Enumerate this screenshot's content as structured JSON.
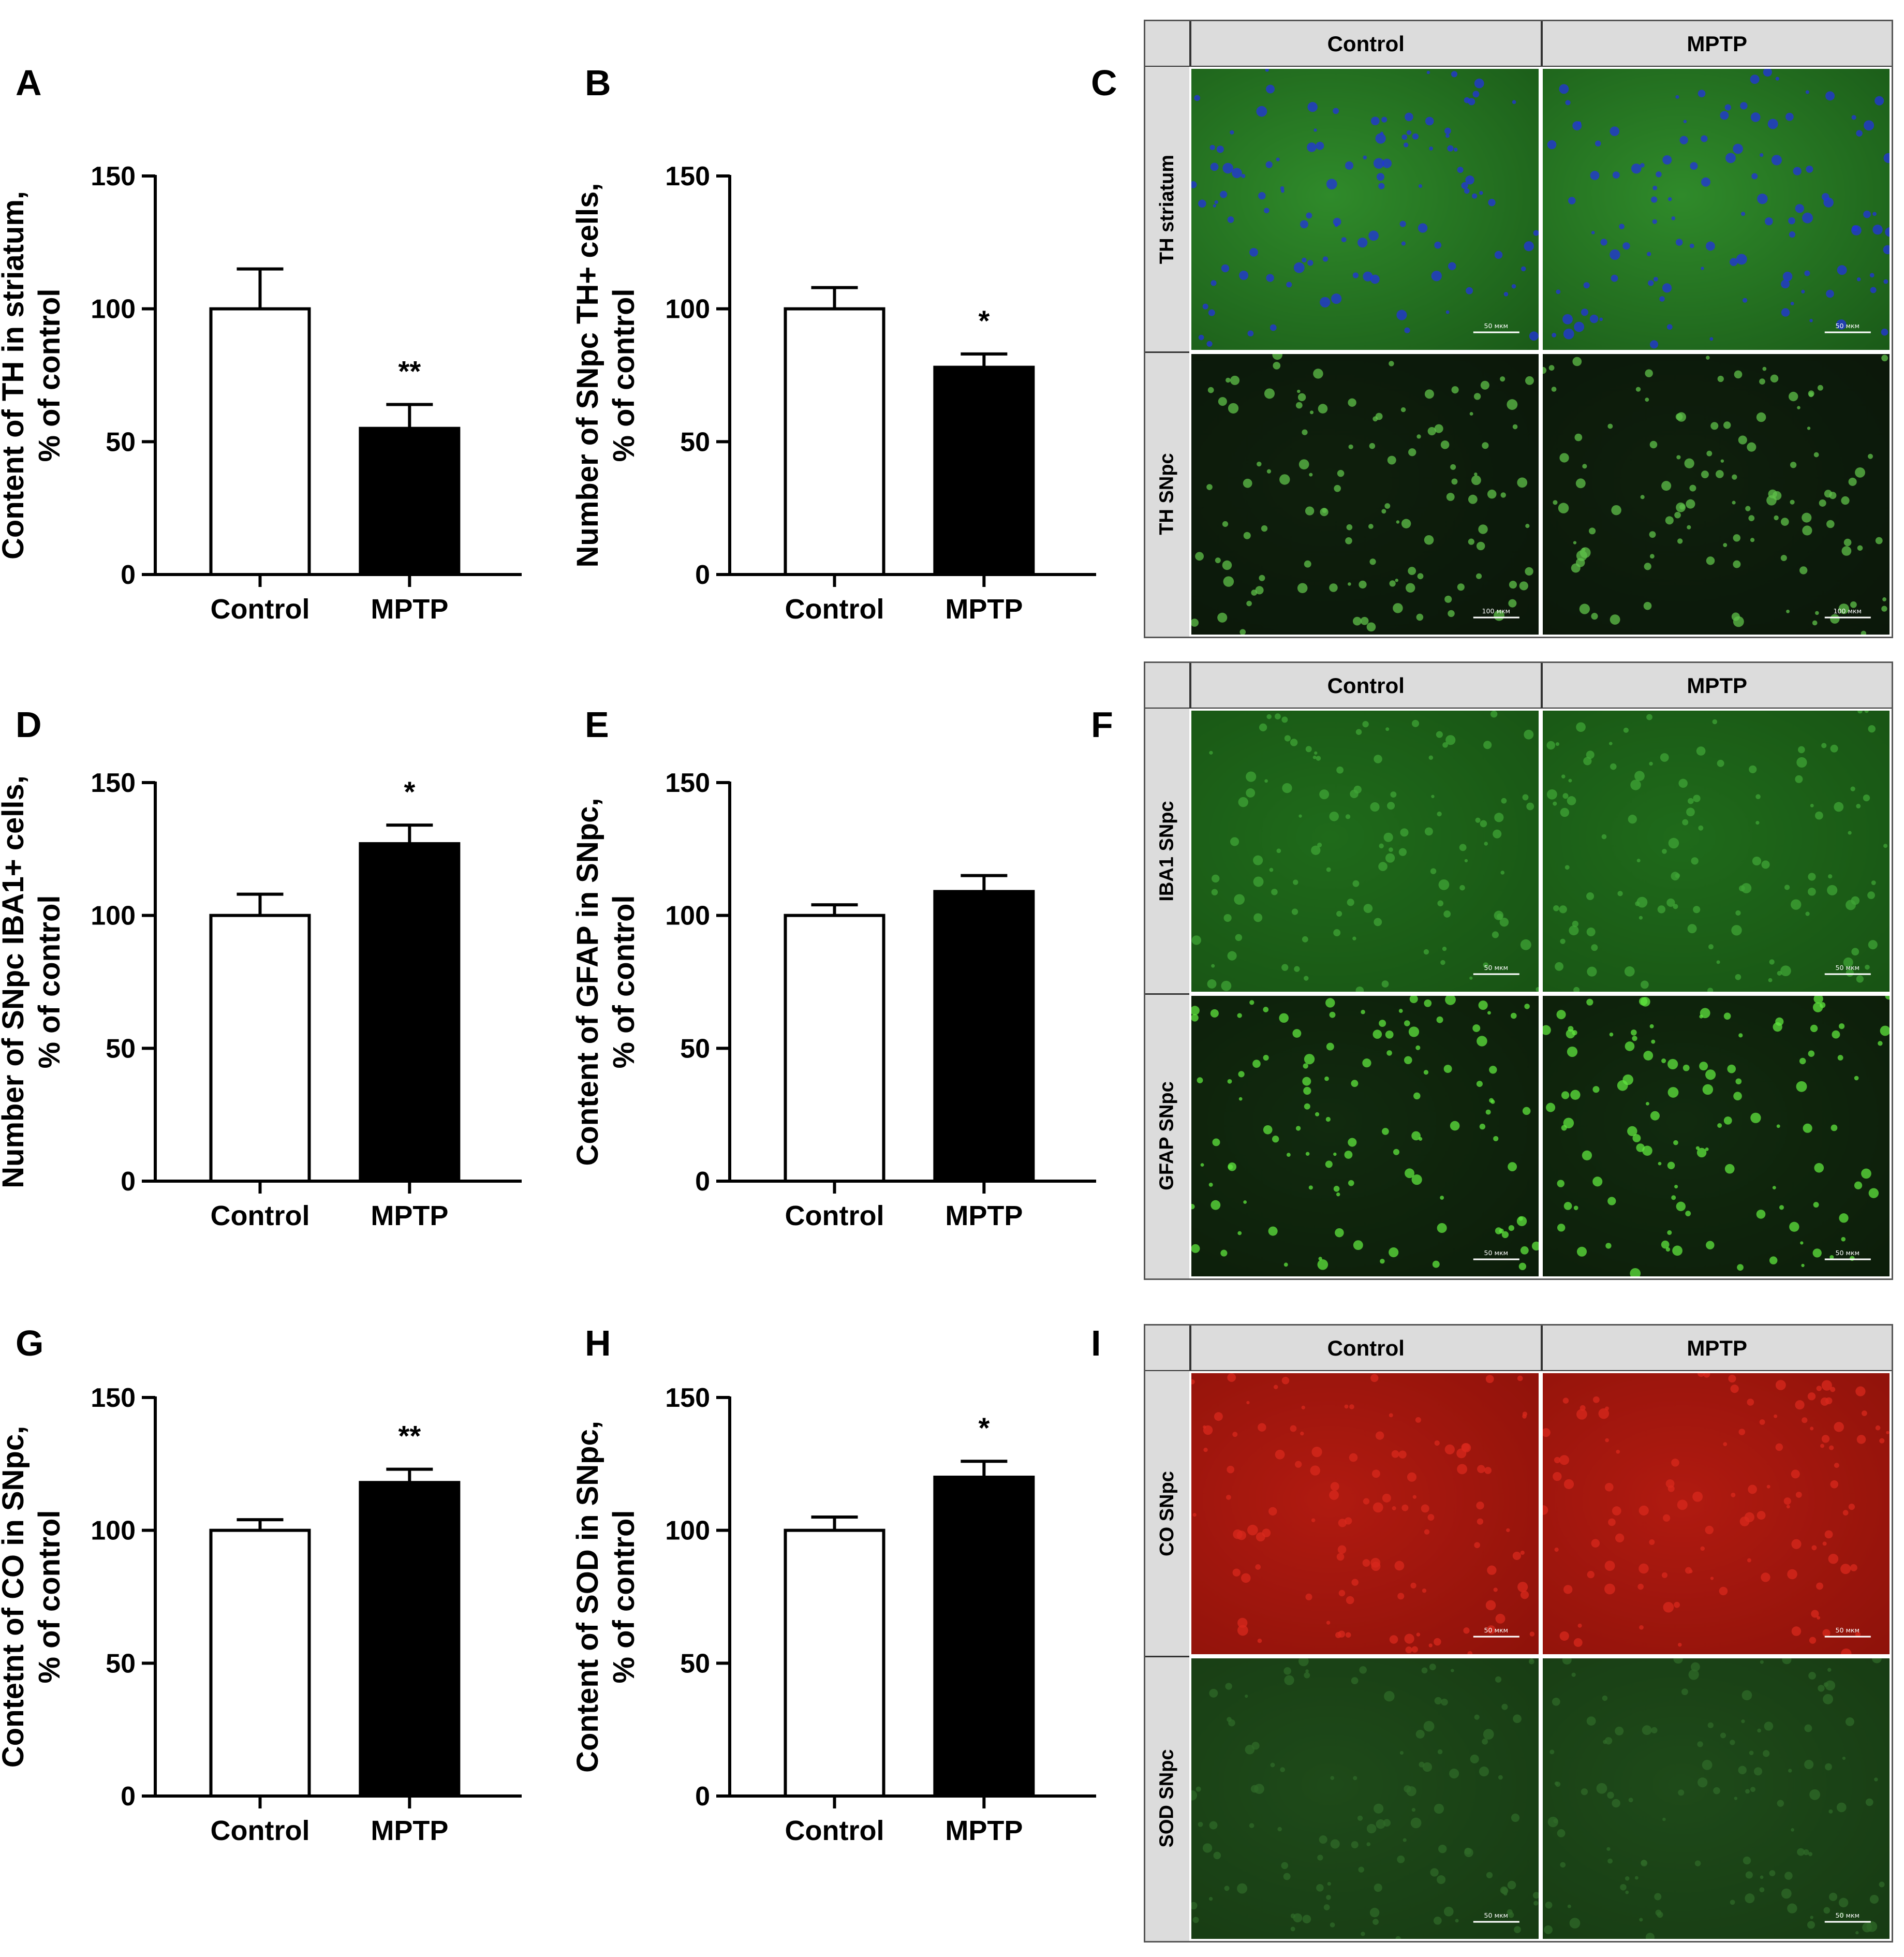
{
  "panels": {
    "A": "A",
    "B": "B",
    "C": "C",
    "D": "D",
    "E": "E",
    "F": "F",
    "G": "G",
    "H": "H",
    "I": "I"
  },
  "chart_data": [
    {
      "panel": "A",
      "type": "bar",
      "categories": [
        "Control",
        "MPTP"
      ],
      "values": [
        100,
        55
      ],
      "errors": [
        15,
        9
      ],
      "significance": [
        "",
        "**"
      ],
      "ylabel_line1": "Content of TH in striatum,",
      "ylabel_line2": "% of control",
      "ylim": [
        0,
        150
      ],
      "yticks": [
        0,
        50,
        100,
        150
      ],
      "bar_colors": [
        "#ffffff",
        "#000000"
      ],
      "grid": false
    },
    {
      "panel": "B",
      "type": "bar",
      "categories": [
        "Control",
        "MPTP"
      ],
      "values": [
        100,
        78
      ],
      "errors": [
        8,
        5
      ],
      "significance": [
        "",
        "*"
      ],
      "ylabel_line1": "Number of SNpc TH+ cells,",
      "ylabel_line2": "% of control",
      "ylim": [
        0,
        150
      ],
      "yticks": [
        0,
        50,
        100,
        150
      ],
      "bar_colors": [
        "#ffffff",
        "#000000"
      ],
      "grid": false
    },
    {
      "panel": "D",
      "type": "bar",
      "categories": [
        "Control",
        "MPTP"
      ],
      "values": [
        100,
        127
      ],
      "errors": [
        8,
        7
      ],
      "significance": [
        "",
        "*"
      ],
      "ylabel_line1": "Number of SNpc IBA1+ cells,",
      "ylabel_line2": "% of control",
      "ylim": [
        0,
        150
      ],
      "yticks": [
        0,
        50,
        100,
        150
      ],
      "bar_colors": [
        "#ffffff",
        "#000000"
      ],
      "grid": false
    },
    {
      "panel": "E",
      "type": "bar",
      "categories": [
        "Control",
        "MPTP"
      ],
      "values": [
        100,
        109
      ],
      "errors": [
        4,
        6
      ],
      "significance": [
        "",
        ""
      ],
      "ylabel_line1": "Content of GFAP in SNpc,",
      "ylabel_line2": "% of control",
      "ylim": [
        0,
        150
      ],
      "yticks": [
        0,
        50,
        100,
        150
      ],
      "bar_colors": [
        "#ffffff",
        "#000000"
      ],
      "grid": false
    },
    {
      "panel": "G",
      "type": "bar",
      "categories": [
        "Control",
        "MPTP"
      ],
      "values": [
        100,
        118
      ],
      "errors": [
        4,
        5
      ],
      "significance": [
        "",
        "**"
      ],
      "ylabel_line1": "Contetnt of CO in SNpc,",
      "ylabel_line2": "% of control",
      "ylim": [
        0,
        150
      ],
      "yticks": [
        0,
        50,
        100,
        150
      ],
      "bar_colors": [
        "#ffffff",
        "#000000"
      ],
      "grid": false
    },
    {
      "panel": "H",
      "type": "bar",
      "categories": [
        "Control",
        "MPTP"
      ],
      "values": [
        100,
        120
      ],
      "errors": [
        5,
        6
      ],
      "significance": [
        "",
        "*"
      ],
      "ylabel_line1": "Content of SOD in SNpc,",
      "ylabel_line2": "% of control",
      "ylim": [
        0,
        150
      ],
      "yticks": [
        0,
        50,
        100,
        150
      ],
      "bar_colors": [
        "#ffffff",
        "#000000"
      ],
      "grid": false
    }
  ],
  "micrographs": [
    {
      "panel": "C",
      "col_headers": [
        "Control",
        "MPTP"
      ],
      "rows": [
        {
          "label": "TH striatum",
          "tint": "#2f8a2a",
          "base": "#1a5a18",
          "dots": "#2233dd",
          "scale": "50 мкм"
        },
        {
          "label": "TH SNpc",
          "tint": "#0e1f0c",
          "base": "#0b170a",
          "dots": "#5fc24a",
          "scale": "100 мкм"
        }
      ]
    },
    {
      "panel": "F",
      "col_headers": [
        "Control",
        "MPTP"
      ],
      "rows": [
        {
          "label": "IBA1 SNpc",
          "tint": "#1f6a1a",
          "base": "#185314",
          "dots": "#3fa436",
          "scale": "50 мкм"
        },
        {
          "label": "GFAP SNpc",
          "tint": "#112a0e",
          "base": "#0c1d0a",
          "dots": "#5fe63e",
          "scale": "50 мкм"
        }
      ]
    },
    {
      "panel": "I",
      "col_headers": [
        "Control",
        "MPTP"
      ],
      "rows": [
        {
          "label": "CO SNpc",
          "tint": "#b01a10",
          "base": "#8e120a",
          "dots": "#d8281c",
          "scale": "50 мкм"
        },
        {
          "label": "SOD SNpc",
          "tint": "#1e4a19",
          "base": "#173b13",
          "dots": "#2f6a28",
          "scale": "50 мкм"
        }
      ]
    }
  ]
}
